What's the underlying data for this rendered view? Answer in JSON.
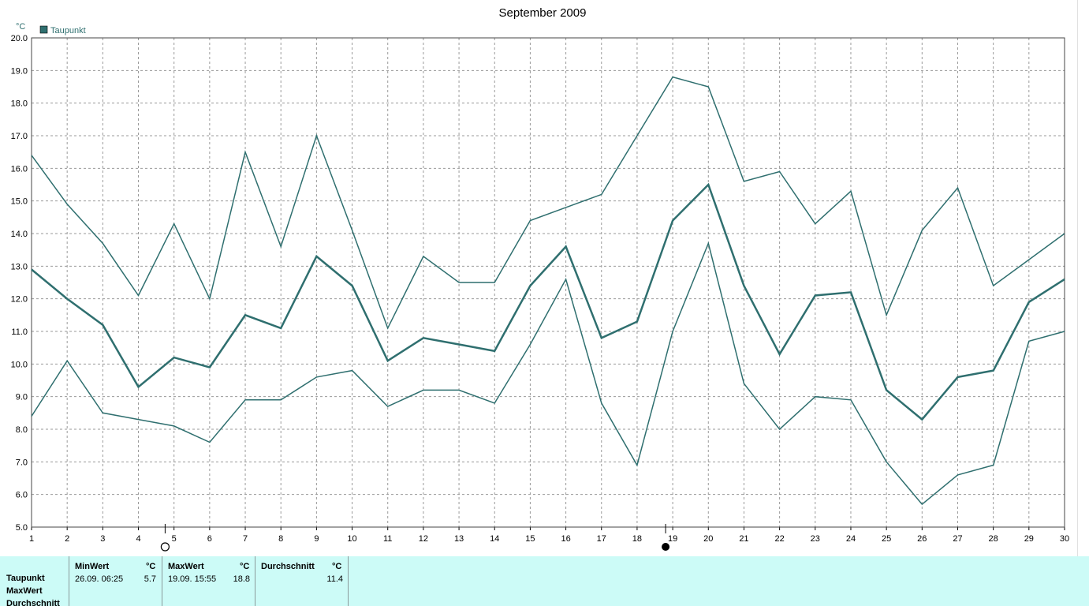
{
  "chart_data": {
    "type": "line",
    "title": "September 2009",
    "ylabel": "°C",
    "xlabel": "",
    "ylim": [
      5.0,
      20.0
    ],
    "yticks": [
      "5.0",
      "6.0",
      "7.0",
      "8.0",
      "9.0",
      "10.0",
      "11.0",
      "12.0",
      "13.0",
      "14.0",
      "15.0",
      "16.0",
      "17.0",
      "18.0",
      "19.0",
      "20.0"
    ],
    "grid": true,
    "legend": [
      {
        "name": "Taupunkt",
        "color": "#2f6f6f"
      }
    ],
    "legend_position": "top-left",
    "x": [
      1,
      2,
      3,
      4,
      5,
      6,
      7,
      8,
      9,
      10,
      11,
      12,
      13,
      14,
      15,
      16,
      17,
      18,
      19,
      20,
      21,
      22,
      23,
      24,
      25,
      26,
      27,
      28,
      29,
      30
    ],
    "series": [
      {
        "values": [
          16.4,
          14.9,
          13.7,
          12.1,
          14.3,
          12.0,
          16.5,
          13.6,
          17.0,
          14.1,
          11.1,
          13.3,
          12.5,
          12.5,
          14.4,
          14.8,
          15.2,
          17.0,
          18.8,
          18.5,
          15.6,
          15.9,
          14.3,
          15.3,
          11.5,
          14.1,
          15.4,
          12.4,
          13.2,
          14.0
        ],
        "width": 1.5
      },
      {
        "values": [
          12.9,
          12.0,
          11.2,
          9.3,
          10.2,
          9.9,
          11.5,
          11.1,
          13.3,
          12.4,
          10.1,
          10.8,
          10.6,
          10.4,
          12.4,
          13.6,
          10.8,
          11.3,
          14.4,
          15.5,
          12.4,
          10.3,
          12.1,
          12.2,
          9.2,
          8.3,
          9.6,
          9.8,
          11.9,
          12.6
        ],
        "width": 2.5
      },
      {
        "values": [
          8.4,
          10.1,
          8.5,
          8.3,
          8.1,
          7.6,
          8.9,
          8.9,
          9.6,
          9.8,
          8.7,
          9.2,
          9.2,
          8.8,
          10.6,
          12.6,
          8.8,
          6.9,
          11.0,
          13.7,
          9.4,
          8.0,
          9.0,
          8.9,
          7.0,
          5.7,
          6.6,
          6.9,
          10.7,
          11.0
        ],
        "width": 1.5
      }
    ],
    "markers": [
      {
        "x": 4.75,
        "symbol": "open-circle"
      },
      {
        "x": 18.8,
        "symbol": "filled-circle"
      }
    ]
  },
  "stats": {
    "row_labels": [
      "Taupunkt",
      "MaxWert",
      "Durchschnitt"
    ],
    "min": {
      "header": "MinWert",
      "unit": "°C",
      "date": "26.09.  06:25",
      "value": "5.7"
    },
    "max": {
      "header": "MaxWert",
      "unit": "°C",
      "date": "19.09.  15:55",
      "value": "18.8"
    },
    "avg": {
      "header": "Durchschnitt",
      "unit": "°C",
      "value": "11.4"
    }
  },
  "colors": {
    "line": "#2f6f6f",
    "panel_bg": "#ccfbf7",
    "grid": "#9a9a9a"
  }
}
